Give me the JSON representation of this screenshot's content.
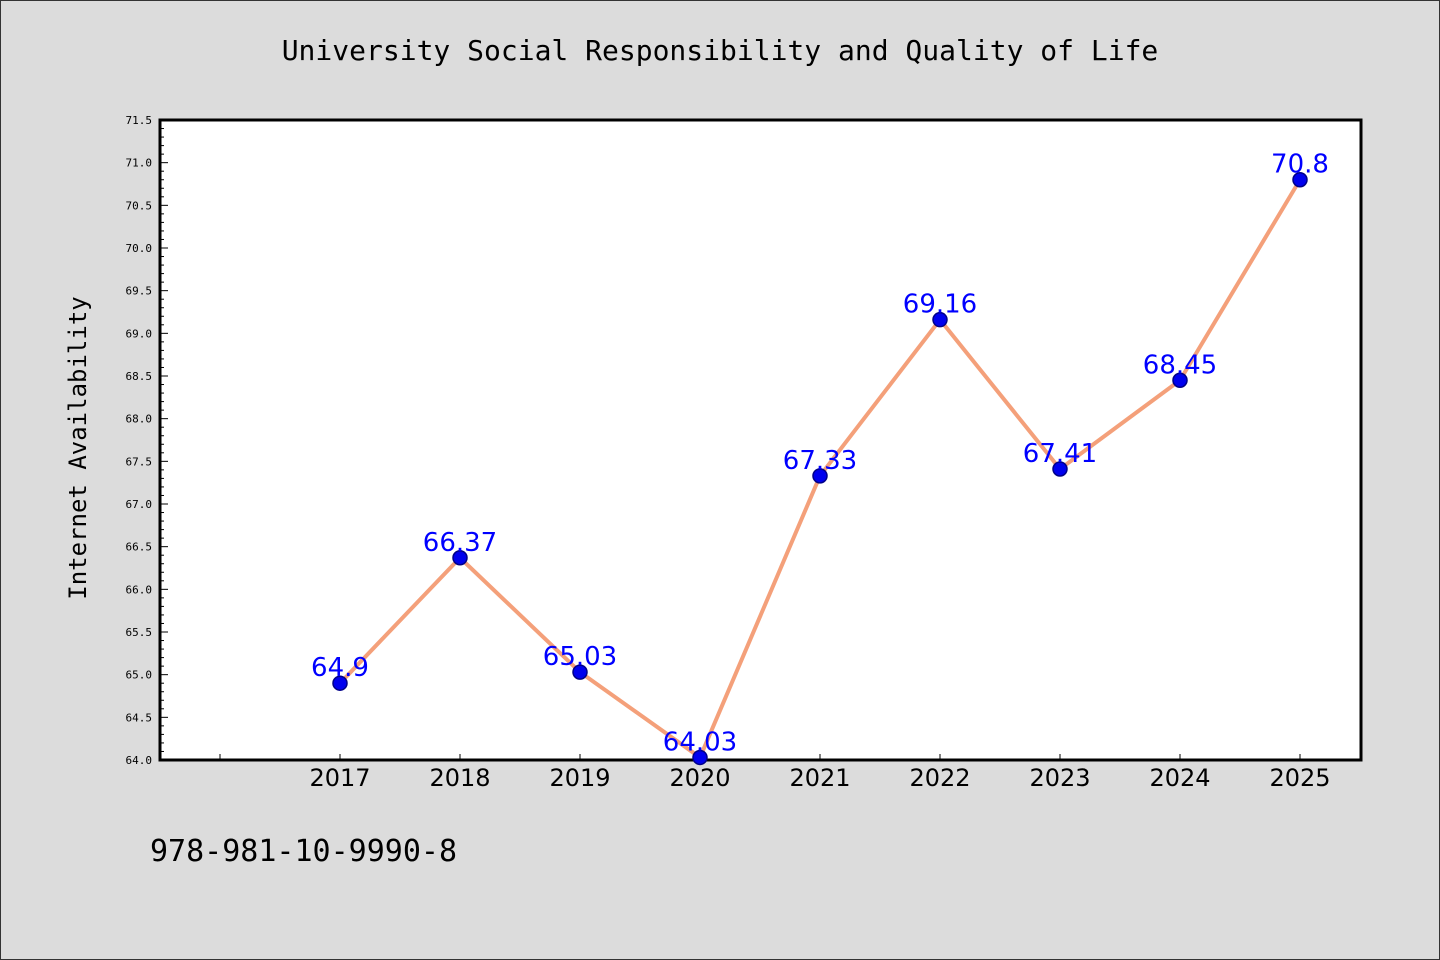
{
  "chart_data": {
    "type": "line",
    "title": "University Social Responsibility and Quality of Life",
    "xlabel": "",
    "ylabel": "Internet Availability",
    "categories": [
      "2017",
      "2018",
      "2019",
      "2020",
      "2021",
      "2022",
      "2023",
      "2024",
      "2025"
    ],
    "series": [
      {
        "values": [
          64.9,
          66.37,
          65.03,
          64.03,
          67.33,
          69.16,
          67.41,
          68.45,
          70.8
        ],
        "labels": [
          "64.9",
          "66.37",
          "65.03",
          "64.03",
          "67.33",
          "69.16",
          "67.41",
          "68.45",
          "70.8"
        ]
      }
    ],
    "ylim": [
      64.0,
      71.5
    ],
    "y_ticks": [
      "64.0",
      "64.5",
      "65.0",
      "65.5",
      "66.0",
      "66.5",
      "67.0",
      "67.5",
      "68.0",
      "68.5",
      "69.0",
      "69.5",
      "70.0",
      "70.5",
      "71.0",
      "71.5"
    ],
    "grid": false,
    "colors": {
      "line": "#f4a07a",
      "marker": "#0000ee",
      "marker_edge": "#000088",
      "data_label": "#0000ff",
      "background": "#dcdcdc",
      "plot_background": "#ffffff"
    }
  },
  "footnote": "978-981-10-9990-8"
}
